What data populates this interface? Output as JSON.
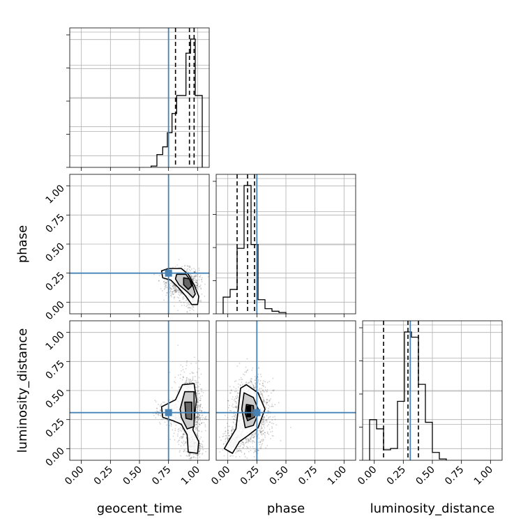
{
  "chart_data": {
    "type": "corner",
    "parameters": [
      "geocent_time",
      "phase",
      "luminosity_distance"
    ],
    "ticks": [
      "0.00",
      "0.25",
      "0.50",
      "0.75",
      "1.00"
    ],
    "tick_values": [
      0,
      0.25,
      0.5,
      0.75,
      1.0
    ],
    "xlim": [
      -0.1,
      1.1
    ],
    "ylim": [
      -0.1,
      1.1
    ],
    "grid": true,
    "truth_color": "#4682b4",
    "quantile_color": "#000000",
    "truths": {
      "geocent_time": 0.75,
      "phase": 0.25,
      "luminosity_distance": 0.31
    },
    "histograms": [
      {
        "parameter": "geocent_time",
        "bin_edges": [
          0.6,
          0.65,
          0.7,
          0.74,
          0.78,
          0.82,
          0.86,
          0.9,
          0.94,
          0.98,
          1.04
        ],
        "counts": [
          0.01,
          0.1,
          0.16,
          0.27,
          0.42,
          0.56,
          0.56,
          0.89,
          1.0,
          0.56
        ],
        "quantiles": [
          0.81,
          0.93,
          0.97
        ]
      },
      {
        "parameter": "phase",
        "bin_edges": [
          -0.04,
          0.02,
          0.08,
          0.14,
          0.2,
          0.26,
          0.32,
          0.38,
          0.44,
          0.5
        ],
        "counts": [
          0.13,
          0.19,
          0.51,
          1.0,
          0.54,
          0.11,
          0.04,
          0.02,
          0.01
        ],
        "quantiles": [
          0.08,
          0.17,
          0.23
        ]
      },
      {
        "parameter": "luminosity_distance",
        "bin_edges": [
          -0.04,
          0.02,
          0.08,
          0.14,
          0.2,
          0.26,
          0.32,
          0.38,
          0.44,
          0.5,
          0.56,
          0.62
        ],
        "counts": [
          0.31,
          0.24,
          0.08,
          0.09,
          0.45,
          0.98,
          0.94,
          0.58,
          0.29,
          0.06,
          0.01
        ],
        "quantiles": [
          0.08,
          0.29,
          0.38
        ]
      }
    ],
    "scatter_panels": [
      {
        "x": "geocent_time",
        "y": "phase",
        "clouds": [
          {
            "cx": 0.87,
            "cy": 0.17,
            "sx": 0.07,
            "sy": 0.06,
            "n": 900
          },
          {
            "cx": 0.95,
            "cy": 0.06,
            "sx": 0.03,
            "sy": 0.05,
            "n": 250
          }
        ],
        "contours": [
          [
            [
              0.69,
              0.27
            ],
            [
              0.75,
              0.29
            ],
            [
              0.86,
              0.29
            ],
            [
              0.92,
              0.24
            ],
            [
              0.97,
              0.15
            ],
            [
              1.01,
              0.05
            ],
            [
              1.0,
              -0.02
            ],
            [
              0.95,
              -0.02
            ],
            [
              0.9,
              0.05
            ],
            [
              0.84,
              0.12
            ],
            [
              0.77,
              0.19
            ],
            [
              0.7,
              0.21
            ]
          ],
          [
            [
              0.82,
              0.24
            ],
            [
              0.9,
              0.24
            ],
            [
              0.95,
              0.17
            ],
            [
              0.98,
              0.07
            ],
            [
              0.96,
              0.04
            ],
            [
              0.91,
              0.09
            ],
            [
              0.84,
              0.15
            ],
            [
              0.81,
              0.2
            ]
          ],
          [
            [
              0.88,
              0.21
            ],
            [
              0.93,
              0.2
            ],
            [
              0.95,
              0.14
            ],
            [
              0.92,
              0.11
            ],
            [
              0.88,
              0.15
            ]
          ]
        ]
      },
      {
        "x": "geocent_time",
        "y": "luminosity_distance",
        "clouds": [
          {
            "cx": 0.93,
            "cy": 0.32,
            "sx": 0.05,
            "sy": 0.16,
            "n": 1000
          },
          {
            "cx": 0.8,
            "cy": 0.31,
            "sx": 0.08,
            "sy": 0.05,
            "n": 350
          },
          {
            "cx": 0.97,
            "cy": 0.02,
            "sx": 0.03,
            "sy": 0.05,
            "n": 250
          }
        ],
        "contours": [
          [
            [
              0.69,
              0.36
            ],
            [
              0.81,
              0.42
            ],
            [
              0.87,
              0.55
            ],
            [
              0.97,
              0.56
            ],
            [
              0.99,
              0.42
            ],
            [
              0.96,
              0.16
            ],
            [
              1.01,
              0.06
            ],
            [
              1.0,
              -0.04
            ],
            [
              0.92,
              -0.03
            ],
            [
              0.91,
              0.12
            ],
            [
              0.86,
              0.21
            ],
            [
              0.79,
              0.24
            ],
            [
              0.7,
              0.27
            ]
          ],
          [
            [
              0.85,
              0.34
            ],
            [
              0.89,
              0.49
            ],
            [
              0.97,
              0.49
            ],
            [
              0.97,
              0.19
            ],
            [
              0.91,
              0.17
            ],
            [
              0.86,
              0.27
            ]
          ],
          [
            [
              0.89,
              0.4
            ],
            [
              0.95,
              0.4
            ],
            [
              0.95,
              0.25
            ],
            [
              0.9,
              0.26
            ]
          ]
        ]
      },
      {
        "x": "phase",
        "y": "luminosity_distance",
        "clouds": [
          {
            "cx": 0.2,
            "cy": 0.31,
            "sx": 0.08,
            "sy": 0.14,
            "n": 1400
          },
          {
            "cx": 0.05,
            "cy": 0.06,
            "sx": 0.05,
            "sy": 0.05,
            "n": 200
          }
        ],
        "contours": [
          [
            [
              0.11,
              0.52
            ],
            [
              0.16,
              0.55
            ],
            [
              0.26,
              0.48
            ],
            [
              0.32,
              0.34
            ],
            [
              0.26,
              0.18
            ],
            [
              0.17,
              0.11
            ],
            [
              0.1,
              0.06
            ],
            [
              0.04,
              -0.04
            ],
            [
              -0.03,
              0.0
            ],
            [
              0.01,
              0.07
            ],
            [
              0.07,
              0.17
            ],
            [
              0.09,
              0.34
            ]
          ],
          [
            [
              0.14,
              0.48
            ],
            [
              0.22,
              0.44
            ],
            [
              0.27,
              0.32
            ],
            [
              0.22,
              0.2
            ],
            [
              0.15,
              0.18
            ],
            [
              0.12,
              0.34
            ]
          ],
          [
            [
              0.16,
              0.38
            ],
            [
              0.22,
              0.37
            ],
            [
              0.23,
              0.27
            ],
            [
              0.17,
              0.24
            ],
            [
              0.15,
              0.3
            ]
          ]
        ],
        "filled_box": [
          0.16,
          0.27,
          0.2,
          0.37
        ]
      }
    ]
  }
}
